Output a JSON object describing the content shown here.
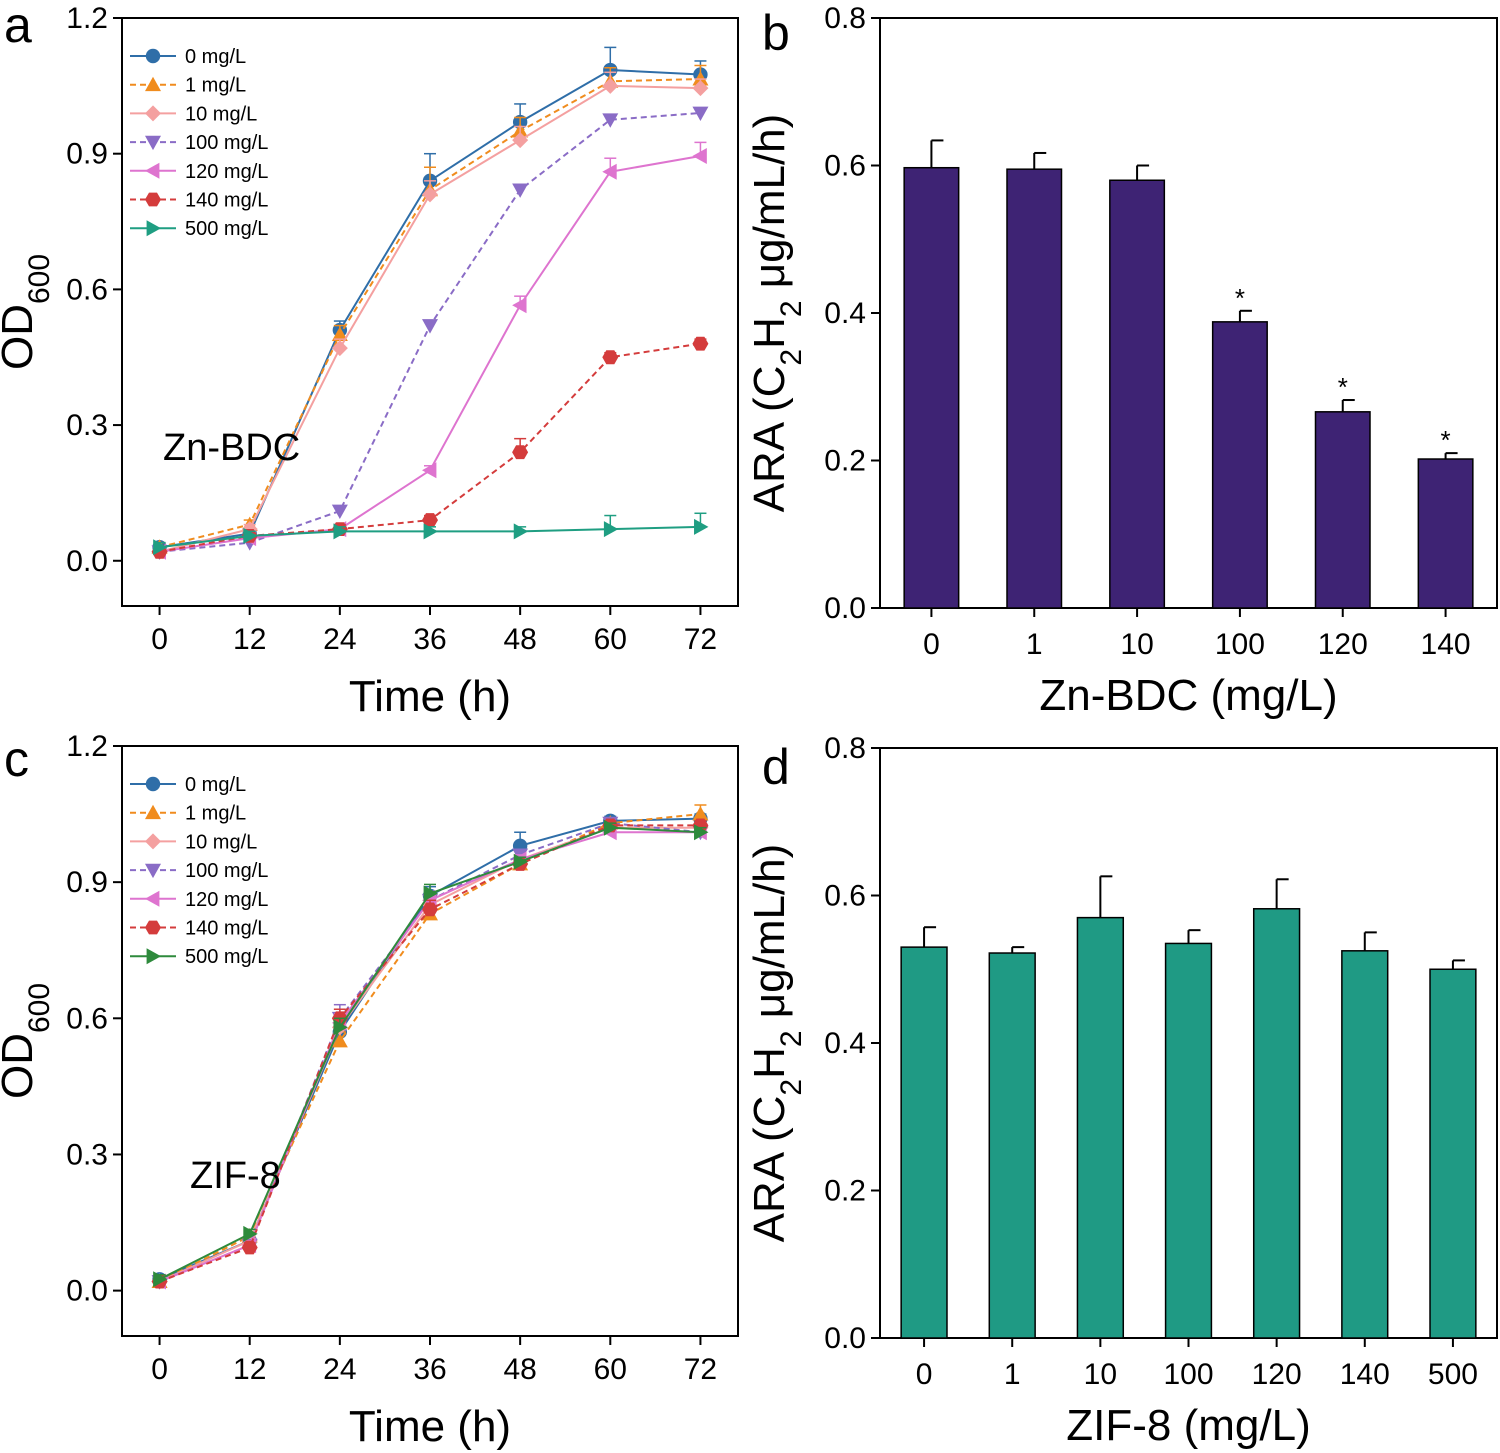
{
  "chart_data": [
    {
      "panel": "a",
      "type": "line",
      "annotation": "Zn-BDC",
      "xlabel": "Time (h)",
      "ylabel_main": "OD",
      "ylabel_sub": "600",
      "x": [
        0,
        12,
        24,
        36,
        48,
        60,
        72
      ],
      "xticks": [
        "0",
        "12",
        "24",
        "36",
        "48",
        "60",
        "72"
      ],
      "xlim": [
        -5,
        77
      ],
      "ylim": [
        -0.1,
        1.2
      ],
      "yticks": [
        "0.0",
        "0.3",
        "0.6",
        "0.9",
        "1.2"
      ],
      "grid": false,
      "legend_position": "top-left",
      "series": [
        {
          "name": "0 mg/L",
          "color": "#2f6ea8",
          "marker": "circle",
          "dashed": false,
          "values": [
            0.03,
            0.06,
            0.51,
            0.84,
            0.97,
            1.085,
            1.075
          ],
          "errors": [
            0.01,
            0.01,
            0.02,
            0.06,
            0.04,
            0.05,
            0.03
          ]
        },
        {
          "name": "1 mg/L",
          "color": "#f08c1e",
          "marker": "triangle-up",
          "dashed": true,
          "values": [
            0.03,
            0.08,
            0.5,
            0.82,
            0.95,
            1.06,
            1.065
          ],
          "errors": [
            0.01,
            0.01,
            0.02,
            0.05,
            0.03,
            0.03,
            0.03
          ]
        },
        {
          "name": "10 mg/L",
          "color": "#f4a0a0",
          "marker": "diamond",
          "dashed": false,
          "values": [
            0.02,
            0.07,
            0.47,
            0.81,
            0.93,
            1.05,
            1.045
          ],
          "errors": [
            0.01,
            0.01,
            0.02,
            0.03,
            0.03,
            0.03,
            0.02
          ]
        },
        {
          "name": "100 mg/L",
          "color": "#8a6cc6",
          "marker": "triangle-down",
          "dashed": true,
          "values": [
            0.02,
            0.04,
            0.11,
            0.52,
            0.82,
            0.975,
            0.99
          ],
          "errors": [
            0.005,
            0.005,
            0.01,
            0.01,
            0.01,
            0.01,
            0.01
          ]
        },
        {
          "name": "120 mg/L",
          "color": "#de74cf",
          "marker": "triangle-left",
          "dashed": false,
          "values": [
            0.02,
            0.05,
            0.07,
            0.2,
            0.565,
            0.86,
            0.895
          ],
          "errors": [
            0.005,
            0.005,
            0.01,
            0.01,
            0.02,
            0.03,
            0.03
          ]
        },
        {
          "name": "140 mg/L",
          "color": "#d43c3c",
          "marker": "hexagon",
          "dashed": true,
          "values": [
            0.02,
            0.055,
            0.07,
            0.09,
            0.24,
            0.45,
            0.48
          ],
          "errors": [
            0.005,
            0.005,
            0.01,
            0.01,
            0.03,
            0.01,
            0.01
          ]
        },
        {
          "name": "500 mg/L",
          "color": "#1f9e82",
          "marker": "triangle-right",
          "dashed": false,
          "values": [
            0.03,
            0.055,
            0.065,
            0.065,
            0.065,
            0.07,
            0.075
          ],
          "errors": [
            0.01,
            0.01,
            0.01,
            0.01,
            0.01,
            0.03,
            0.03
          ]
        }
      ]
    },
    {
      "panel": "b",
      "type": "bar",
      "xlabel": "Zn-BDC (mg/L)",
      "ylabel_pre": "ARA (C",
      "ylabel_sub1": "2",
      "ylabel_mid": "H",
      "ylabel_sub2": "2",
      "ylabel_post": " μg/mL/h)",
      "categories": [
        "0",
        "1",
        "10",
        "100",
        "120",
        "140"
      ],
      "values": [
        0.597,
        0.595,
        0.58,
        0.388,
        0.266,
        0.202
      ],
      "errors": [
        0.037,
        0.022,
        0.02,
        0.015,
        0.016,
        0.008
      ],
      "significance": [
        "",
        "",
        "",
        "*",
        "*",
        "*"
      ],
      "color": "#3e2374",
      "ylim": [
        0,
        0.8
      ],
      "yticks": [
        "0.0",
        "0.2",
        "0.4",
        "0.6",
        "0.8"
      ],
      "grid": false
    },
    {
      "panel": "c",
      "type": "line",
      "annotation": "ZIF-8",
      "xlabel": "Time (h)",
      "ylabel_main": "OD",
      "ylabel_sub": "600",
      "x": [
        0,
        12,
        24,
        36,
        48,
        60,
        72
      ],
      "xticks": [
        "0",
        "12",
        "24",
        "36",
        "48",
        "60",
        "72"
      ],
      "xlim": [
        -5,
        77
      ],
      "ylim": [
        -0.1,
        1.2
      ],
      "yticks": [
        "0.0",
        "0.3",
        "0.6",
        "0.9",
        "1.2"
      ],
      "grid": false,
      "legend_position": "top-left",
      "series": [
        {
          "name": "0 mg/L",
          "color": "#2f6ea8",
          "marker": "circle",
          "dashed": false,
          "values": [
            0.025,
            0.11,
            0.57,
            0.87,
            0.98,
            1.035,
            1.04
          ],
          "errors": [
            0.01,
            0.01,
            0.02,
            0.02,
            0.03,
            0.01,
            0.01
          ]
        },
        {
          "name": "1 mg/L",
          "color": "#f08c1e",
          "marker": "triangle-up",
          "dashed": true,
          "values": [
            0.02,
            0.12,
            0.55,
            0.83,
            0.94,
            1.03,
            1.05
          ],
          "errors": [
            0.01,
            0.01,
            0.02,
            0.02,
            0.01,
            0.01,
            0.02
          ]
        },
        {
          "name": "10 mg/L",
          "color": "#f4a0a0",
          "marker": "diamond",
          "dashed": false,
          "values": [
            0.02,
            0.11,
            0.58,
            0.85,
            0.95,
            1.02,
            1.02
          ],
          "errors": [
            0.01,
            0.01,
            0.02,
            0.02,
            0.01,
            0.01,
            0.01
          ]
        },
        {
          "name": "100 mg/L",
          "color": "#8a6cc6",
          "marker": "triangle-down",
          "dashed": true,
          "values": [
            0.02,
            0.1,
            0.6,
            0.86,
            0.96,
            1.03,
            1.01
          ],
          "errors": [
            0.01,
            0.01,
            0.03,
            0.02,
            0.01,
            0.01,
            0.01
          ]
        },
        {
          "name": "120 mg/L",
          "color": "#de74cf",
          "marker": "triangle-left",
          "dashed": false,
          "values": [
            0.02,
            0.1,
            0.59,
            0.86,
            0.95,
            1.01,
            1.01
          ],
          "errors": [
            0.01,
            0.01,
            0.02,
            0.02,
            0.01,
            0.01,
            0.01
          ]
        },
        {
          "name": "140 mg/L",
          "color": "#d43c3c",
          "marker": "hexagon",
          "dashed": true,
          "values": [
            0.02,
            0.095,
            0.6,
            0.84,
            0.94,
            1.025,
            1.025
          ],
          "errors": [
            0.01,
            0.01,
            0.02,
            0.02,
            0.01,
            0.01,
            0.01
          ]
        },
        {
          "name": "500 mg/L",
          "color": "#2e8a3c",
          "marker": "triangle-right",
          "dashed": false,
          "values": [
            0.025,
            0.125,
            0.58,
            0.875,
            0.945,
            1.02,
            1.01
          ],
          "errors": [
            0.01,
            0.01,
            0.02,
            0.02,
            0.01,
            0.01,
            0.01
          ]
        }
      ]
    },
    {
      "panel": "d",
      "type": "bar",
      "xlabel": "ZIF-8 (mg/L)",
      "ylabel_pre": "ARA (C",
      "ylabel_sub1": "2",
      "ylabel_mid": "H",
      "ylabel_sub2": "2",
      "ylabel_post": " μg/mL/h)",
      "categories": [
        "0",
        "1",
        "10",
        "100",
        "120",
        "140",
        "500"
      ],
      "values": [
        0.53,
        0.522,
        0.57,
        0.535,
        0.582,
        0.525,
        0.5
      ],
      "errors": [
        0.027,
        0.008,
        0.056,
        0.018,
        0.04,
        0.025,
        0.012
      ],
      "significance": [
        "",
        "",
        "",
        "",
        "",
        "",
        ""
      ],
      "color": "#1f9a84",
      "ylim": [
        0,
        0.8
      ],
      "yticks": [
        "0.0",
        "0.2",
        "0.4",
        "0.6",
        "0.8"
      ],
      "grid": false
    }
  ]
}
